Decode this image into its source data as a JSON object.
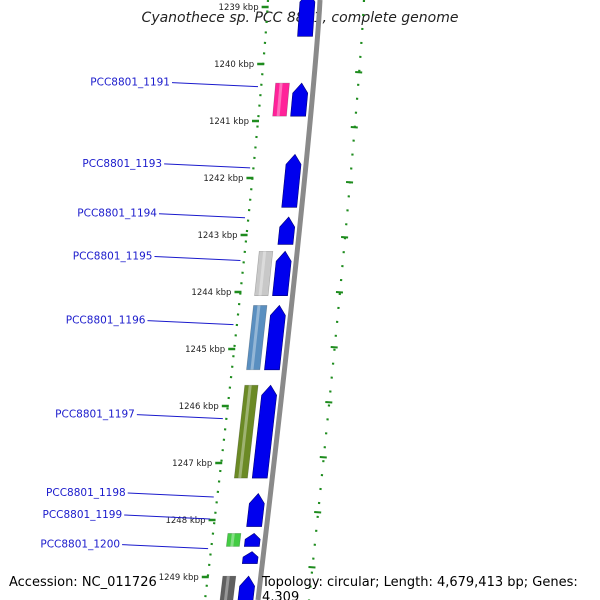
{
  "title": "Cyanothece sp. PCC 8801, complete genome",
  "footer": {
    "accession": "Accession: NC_011726",
    "stats": "Topology: circular; Length: 4,679,413 bp; Genes: 4,309"
  },
  "colors": {
    "forward_strand": "#0000ee",
    "backbone": "#8a8a8a",
    "gc_dots": "#1e8c1e",
    "label_line": "#1a1acc"
  },
  "kbp_ticks": [
    {
      "label": "1239 kbp",
      "pos": 1239
    },
    {
      "label": "1240 kbp",
      "pos": 1240
    },
    {
      "label": "1241 kbp",
      "pos": 1241
    },
    {
      "label": "1242 kbp",
      "pos": 1242
    },
    {
      "label": "1243 kbp",
      "pos": 1243
    },
    {
      "label": "1244 kbp",
      "pos": 1244
    },
    {
      "label": "1245 kbp",
      "pos": 1245
    },
    {
      "label": "1246 kbp",
      "pos": 1246
    },
    {
      "label": "1247 kbp",
      "pos": 1247
    },
    {
      "label": "1248 kbp",
      "pos": 1248
    },
    {
      "label": "1249 kbp",
      "pos": 1249
    }
  ],
  "genes": [
    {
      "label": "",
      "start": 1238.6,
      "end": 1239.55,
      "cog_color": "#b5ad74"
    },
    {
      "label": "PCC8801_1191",
      "start": 1240.3,
      "end": 1240.95,
      "cog_color": "#ff2299"
    },
    {
      "label": "PCC8801_1193",
      "start": 1241.55,
      "end": 1242.55,
      "cog_color": ""
    },
    {
      "label": "PCC8801_1194",
      "start": 1242.65,
      "end": 1243.2,
      "cog_color": ""
    },
    {
      "label": "PCC8801_1195",
      "start": 1243.25,
      "end": 1244.1,
      "cog_color": "#c8c8c8"
    },
    {
      "label": "PCC8801_1196",
      "start": 1244.2,
      "end": 1245.4,
      "cog_color": "#5a8fc0"
    },
    {
      "label": "PCC8801_1197",
      "start": 1245.6,
      "end": 1247.3,
      "cog_color": "#6b8a25"
    },
    {
      "label": "PCC8801_1198",
      "start": 1247.5,
      "end": 1248.15,
      "cog_color": ""
    },
    {
      "label": "PCC8801_1199",
      "start": 1248.2,
      "end": 1248.5,
      "cog_color": "#44cc44"
    },
    {
      "label": "PCC8801_1200",
      "start": 1248.52,
      "end": 1248.8,
      "cog_color": ""
    },
    {
      "label": "",
      "start": 1248.95,
      "end": 1250.0,
      "cog_color": "#606060"
    }
  ]
}
